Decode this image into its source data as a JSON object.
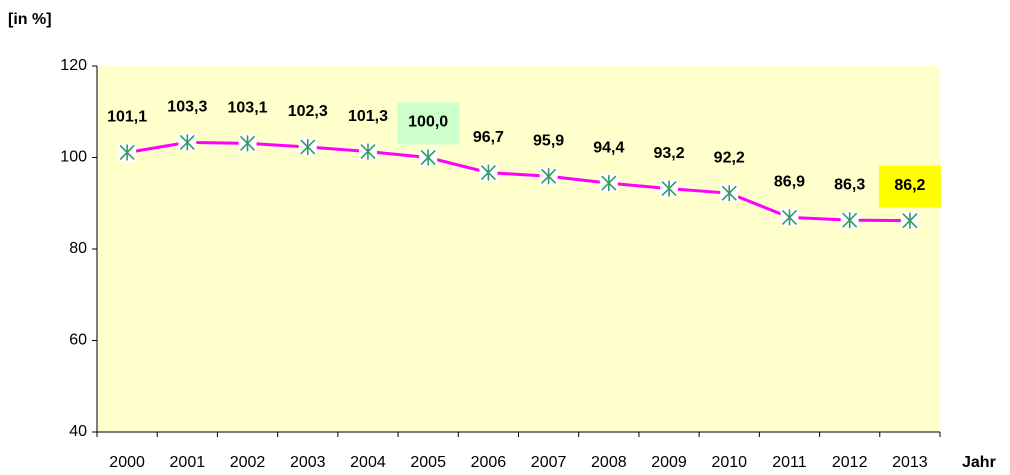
{
  "chart_data": {
    "type": "line",
    "y_axis_label": "[in %]",
    "x_axis_label": "Jahr",
    "categories": [
      "2000",
      "2001",
      "2002",
      "2003",
      "2004",
      "2005",
      "2006",
      "2007",
      "2008",
      "2009",
      "2010",
      "2011",
      "2012",
      "2013"
    ],
    "series": [
      {
        "name": null,
        "color": "#ff00ff",
        "marker_color": "#339966",
        "values": [
          101.1,
          103.3,
          103.1,
          102.3,
          101.3,
          100.0,
          96.7,
          95.9,
          94.4,
          93.2,
          92.2,
          86.9,
          86.3,
          86.2
        ],
        "value_labels": [
          "101,1",
          "103,3",
          "103,1",
          "102,3",
          "101,3",
          "100,0",
          "96,7",
          "95,9",
          "94,4",
          "93,2",
          "92,2",
          "86,9",
          "86,3",
          "86,2"
        ],
        "label_backgrounds": [
          null,
          null,
          null,
          null,
          null,
          "#ccffcc",
          null,
          null,
          null,
          null,
          null,
          null,
          null,
          "#ffff00"
        ]
      }
    ],
    "ylim": [
      40,
      120
    ],
    "yticks": [
      40,
      60,
      80,
      100,
      120
    ],
    "plot_background": "#ffffcc"
  }
}
